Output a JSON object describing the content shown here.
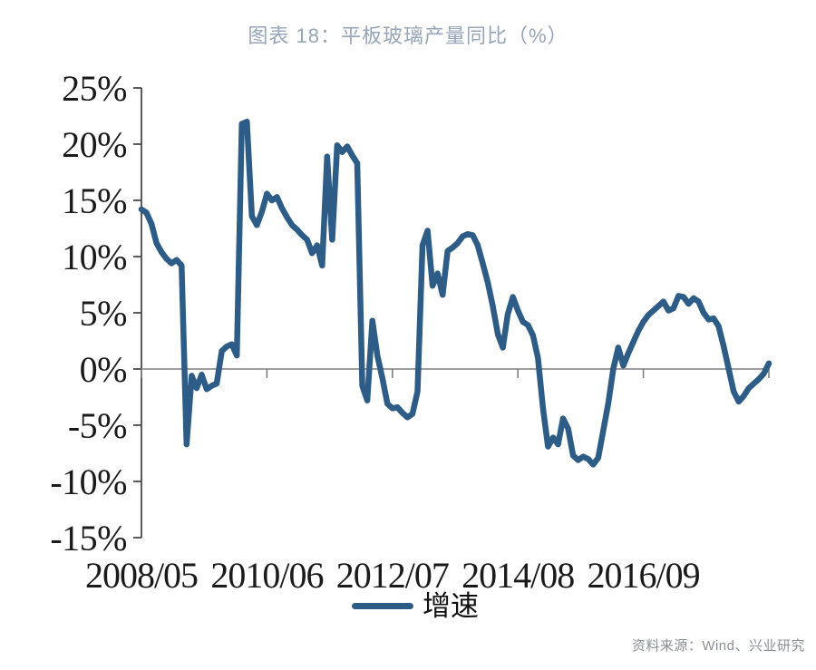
{
  "title": "图表 18：平板玻璃产量同比（%）",
  "source": "资料来源：Wind、兴业研究",
  "colors": {
    "line": "#2d5c87",
    "title": "#97a5b8",
    "source": "#8a8f96",
    "y_axis": "#4a4a4a",
    "x_axis": "#7f7f7f"
  },
  "chart_data": {
    "type": "line",
    "title": "图表 18：平板玻璃产量同比（%）",
    "legend": [
      "增速"
    ],
    "legend_position": "bottom",
    "xlabel": "",
    "ylabel": "",
    "grid": false,
    "ylim": [
      -15,
      25
    ],
    "y_ticks": [
      25,
      20,
      15,
      10,
      5,
      0,
      -5,
      -10,
      -15
    ],
    "y_tick_labels": [
      "25%",
      "20%",
      "15%",
      "10%",
      "5%",
      "0%",
      "-5%",
      "-10%",
      "-15%"
    ],
    "x_tick_labels": [
      "2008/05",
      "2010/06",
      "2012/07",
      "2014/08",
      "2016/09"
    ],
    "x_tick_indices": [
      0,
      25,
      50,
      75,
      100
    ],
    "x_start": "2008/05",
    "x_freq": "monthly",
    "x": [
      "2008/05",
      "2008/06",
      "2008/07",
      "2008/08",
      "2008/09",
      "2008/10",
      "2008/11",
      "2008/12",
      "2009/01",
      "2009/02",
      "2009/03",
      "2009/04",
      "2009/05",
      "2009/06",
      "2009/07",
      "2009/08",
      "2009/09",
      "2009/10",
      "2009/11",
      "2009/12",
      "2010/01",
      "2010/02",
      "2010/03",
      "2010/04",
      "2010/05",
      "2010/06",
      "2010/07",
      "2010/08",
      "2010/09",
      "2010/10",
      "2010/11",
      "2010/12",
      "2011/01",
      "2011/02",
      "2011/03",
      "2011/04",
      "2011/05",
      "2011/06",
      "2011/07",
      "2011/08",
      "2011/09",
      "2011/10",
      "2011/11",
      "2011/12",
      "2012/01",
      "2012/02",
      "2012/03",
      "2012/04",
      "2012/05",
      "2012/06",
      "2012/07",
      "2012/08",
      "2012/09",
      "2012/10",
      "2012/11",
      "2012/12",
      "2013/01",
      "2013/02",
      "2013/03",
      "2013/04",
      "2013/05",
      "2013/06",
      "2013/07",
      "2013/08",
      "2013/09",
      "2013/10",
      "2013/11",
      "2013/12",
      "2014/01",
      "2014/02",
      "2014/03",
      "2014/04",
      "2014/05",
      "2014/06",
      "2014/07",
      "2014/08",
      "2014/09",
      "2014/10",
      "2014/11",
      "2014/12",
      "2015/01",
      "2015/02",
      "2015/03",
      "2015/04",
      "2015/05",
      "2015/06",
      "2015/07",
      "2015/08",
      "2015/09",
      "2015/10",
      "2015/11",
      "2015/12",
      "2016/01",
      "2016/02",
      "2016/03",
      "2016/04",
      "2016/05",
      "2016/06",
      "2016/07",
      "2016/08",
      "2016/09",
      "2016/10",
      "2016/11",
      "2016/12",
      "2017/01",
      "2017/02",
      "2017/03",
      "2017/04",
      "2017/05",
      "2017/06",
      "2017/07",
      "2017/08",
      "2017/09",
      "2017/10",
      "2017/11",
      "2017/12",
      "2018/01",
      "2018/02",
      "2018/03",
      "2018/04",
      "2018/05",
      "2018/06",
      "2018/07",
      "2018/08",
      "2018/09",
      "2018/10"
    ],
    "series": [
      {
        "name": "增速",
        "values": [
          14.2,
          13.9,
          12.9,
          11.2,
          10.4,
          9.8,
          9.4,
          9.7,
          9.2,
          -6.7,
          -0.6,
          -1.7,
          -0.5,
          -1.8,
          -1.5,
          -1.3,
          1.6,
          2.0,
          2.2,
          1.2,
          21.8,
          22.0,
          13.6,
          12.8,
          14.0,
          15.6,
          15.0,
          15.3,
          14.3,
          13.5,
          12.8,
          12.4,
          11.9,
          11.5,
          10.3,
          11.0,
          9.2,
          18.9,
          11.5,
          19.9,
          19.3,
          19.8,
          19.0,
          18.3,
          -1.5,
          -2.8,
          4.3,
          1.2,
          -0.8,
          -3.1,
          -3.5,
          -3.4,
          -3.9,
          -4.3,
          -4.0,
          -2.0,
          11.0,
          12.3,
          7.4,
          8.5,
          6.6,
          10.5,
          10.8,
          11.2,
          11.8,
          12.0,
          11.9,
          11.0,
          9.4,
          7.7,
          5.6,
          3.1,
          1.9,
          4.9,
          6.4,
          5.2,
          4.2,
          3.9,
          3.0,
          1.0,
          -3.5,
          -6.9,
          -6.1,
          -6.7,
          -4.4,
          -5.3,
          -7.7,
          -8.1,
          -7.8,
          -8.0,
          -8.5,
          -7.9,
          -5.5,
          -3.1,
          0.0,
          1.9,
          0.3,
          1.4,
          2.4,
          3.4,
          4.2,
          4.8,
          5.2,
          5.6,
          6.0,
          5.2,
          5.4,
          6.5,
          6.4,
          5.8,
          6.3,
          6.0,
          5.0,
          4.4,
          4.5,
          3.8,
          2.0,
          0.0,
          -2.0,
          -2.9,
          -2.4,
          -1.7,
          -1.3,
          -0.9,
          -0.4,
          0.5
        ]
      }
    ]
  }
}
